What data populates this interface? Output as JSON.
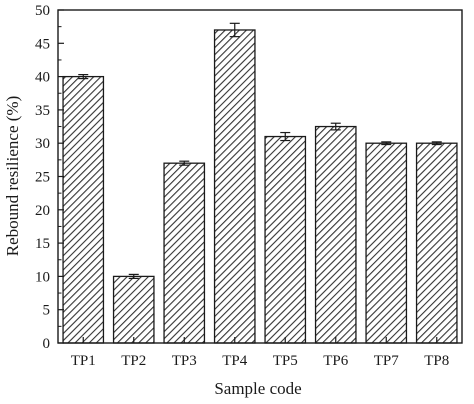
{
  "chart_data": {
    "type": "bar",
    "xlabel": "Sample code",
    "ylabel": "Rebound resilience (%)",
    "categories": [
      "TP1",
      "TP2",
      "TP3",
      "TP4",
      "TP5",
      "TP6",
      "TP7",
      "TP8"
    ],
    "values": [
      40,
      10,
      27,
      47,
      31,
      32.5,
      30,
      30
    ],
    "errors": [
      0.3,
      0.3,
      0.3,
      1.0,
      0.6,
      0.5,
      0.2,
      0.2
    ],
    "ylim": [
      0,
      50
    ],
    "yticks": [
      "0",
      "5",
      "10",
      "15",
      "20",
      "25",
      "30",
      "35",
      "40",
      "45",
      "50"
    ],
    "grid": false,
    "bar_fill": "diagonal-hatch",
    "colors": {
      "bar_edge": "#1a1a1a",
      "hatch": "#333333",
      "bar_background": "#ffffff",
      "axis": "#1a1a1a"
    }
  }
}
